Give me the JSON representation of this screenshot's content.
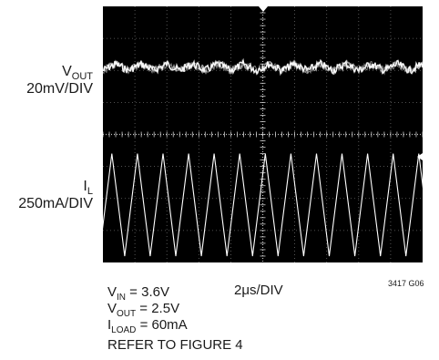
{
  "chart_data": {
    "type": "line",
    "title": "",
    "traces": [
      {
        "name": "V_OUT",
        "label_main": "V",
        "label_sub": "OUT",
        "scale": "20mV/DIV",
        "shape": "noisy ripple",
        "period_div": 0.8,
        "peak_to_peak_div": 0.45
      },
      {
        "name": "I_L",
        "label_main": "I",
        "label_sub": "L",
        "scale": "250mA/DIV",
        "shape": "triangle",
        "period_div": 0.8,
        "peak_to_peak_div": 3.2
      }
    ],
    "time_scale": "2μs/DIV",
    "grid_divisions": {
      "x": 10,
      "y": 8
    },
    "grid": true,
    "background": "#000000",
    "trace_color": "#ffffff"
  },
  "conditions": [
    {
      "main": "V",
      "sub": "IN",
      "rest": " = 3.6V"
    },
    {
      "main": "V",
      "sub": "OUT",
      "rest": " = 2.5V"
    },
    {
      "main": "I",
      "sub": "LOAD",
      "rest": " = 60mA"
    },
    {
      "main": "REFER TO FIGURE 4",
      "sub": "",
      "rest": ""
    }
  ],
  "figure_code": "3417 G06"
}
